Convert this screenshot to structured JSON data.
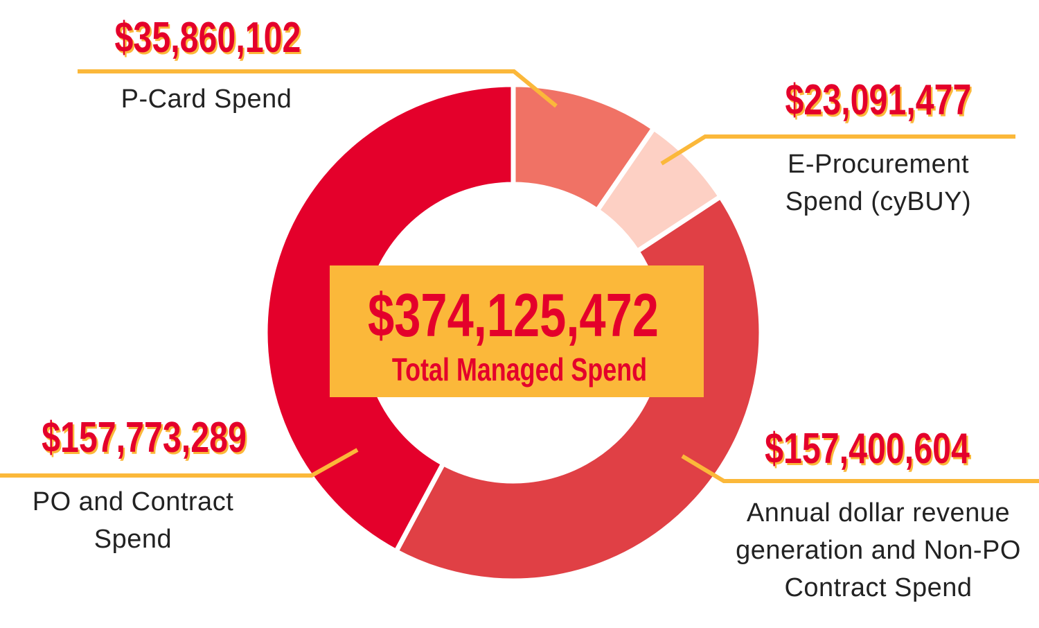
{
  "chart_data": {
    "type": "pie",
    "donut": true,
    "categories": [
      "P-Card Spend",
      "E-Procurement Spend (cyBUY)",
      "Annual dollar revenue generation and Non-PO Contract Spend",
      "PO and Contract Spend"
    ],
    "values": [
      35860102,
      23091477,
      157400604,
      157773289
    ],
    "value_labels": [
      "$35,860,102",
      "$23,091,477",
      "$157,400,604",
      "$157,773,289"
    ],
    "colors": [
      "#f07265",
      "#fdd0c4",
      "#e04045",
      "#e4002b"
    ],
    "center_value": "$374,125,472",
    "center_text": "Total Managed Spend"
  }
}
